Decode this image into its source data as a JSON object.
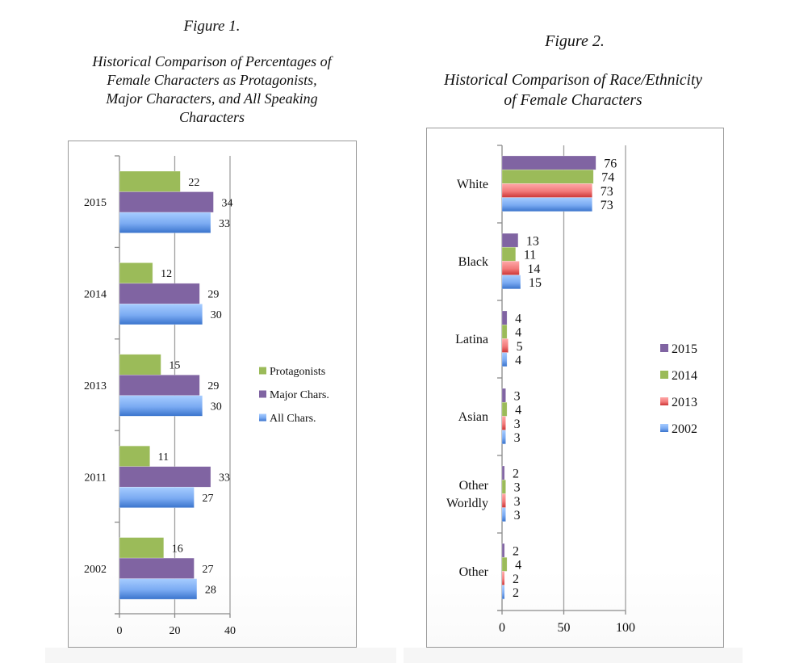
{
  "page": {
    "figure1_label": "Figure 1.",
    "figure1_title_lines": [
      "Historical Comparison of Percentages of",
      "Female Characters as Protagonists,",
      "Major Characters, and All Speaking",
      "Characters"
    ],
    "figure2_label": "Figure 2.",
    "figure2_title_lines": [
      "Historical Comparison of Race/Ethnicity",
      "of Female Characters"
    ]
  },
  "chart_data": [
    {
      "type": "bar",
      "orientation": "horizontal",
      "title": "Historical Comparison of Percentages of Female Characters as Protagonists, Major Characters, and All Speaking Characters",
      "xlabel": "",
      "ylabel": "",
      "categories": [
        "2015",
        "2014",
        "2013",
        "2011",
        "2002"
      ],
      "series": [
        {
          "name": "Protagonists",
          "color": "#9bbb59",
          "values": [
            22,
            12,
            15,
            11,
            16
          ]
        },
        {
          "name": "Major Chars.",
          "color": "#8064a2",
          "values": [
            34,
            29,
            29,
            33,
            27
          ]
        },
        {
          "name": "All Chars.",
          "color": "#4f81bd",
          "gradient": [
            "#9dc3ff",
            "#3b78d0"
          ],
          "values": [
            33,
            30,
            30,
            27,
            28
          ]
        }
      ],
      "xlim": [
        0,
        40
      ],
      "xticks": [
        "0",
        "20",
        "40"
      ],
      "grid": true,
      "data_labels": true,
      "legend": "right"
    },
    {
      "type": "bar",
      "orientation": "horizontal",
      "title": "Historical Comparison of Race/Ethnicity of Female Characters",
      "xlabel": "",
      "ylabel": "",
      "categories": [
        "White",
        "Black",
        "Latina",
        "Asian",
        "Other Worldly",
        "Other"
      ],
      "category_lines": [
        [
          "White"
        ],
        [
          "Black"
        ],
        [
          "Latina"
        ],
        [
          "Asian"
        ],
        [
          "Other",
          "Worldly"
        ],
        [
          "Other"
        ]
      ],
      "series": [
        {
          "name": "2015",
          "color": "#8064a2",
          "values": [
            76,
            13,
            4,
            3,
            2,
            2
          ]
        },
        {
          "name": "2014",
          "color": "#9bbb59",
          "values": [
            74,
            11,
            4,
            4,
            3,
            4
          ]
        },
        {
          "name": "2013",
          "color": "#c0504d",
          "gradient": [
            "#ff9e9e",
            "#d03a3a"
          ],
          "values": [
            73,
            14,
            5,
            3,
            3,
            2
          ]
        },
        {
          "name": "2002",
          "color": "#4f81bd",
          "gradient": [
            "#9dc3ff",
            "#3b78d0"
          ],
          "values": [
            73,
            15,
            4,
            3,
            3,
            2
          ]
        }
      ],
      "xlim": [
        0,
        100
      ],
      "xticks": [
        "0",
        "50",
        "100"
      ],
      "grid": true,
      "data_labels": true,
      "legend": "right"
    }
  ]
}
